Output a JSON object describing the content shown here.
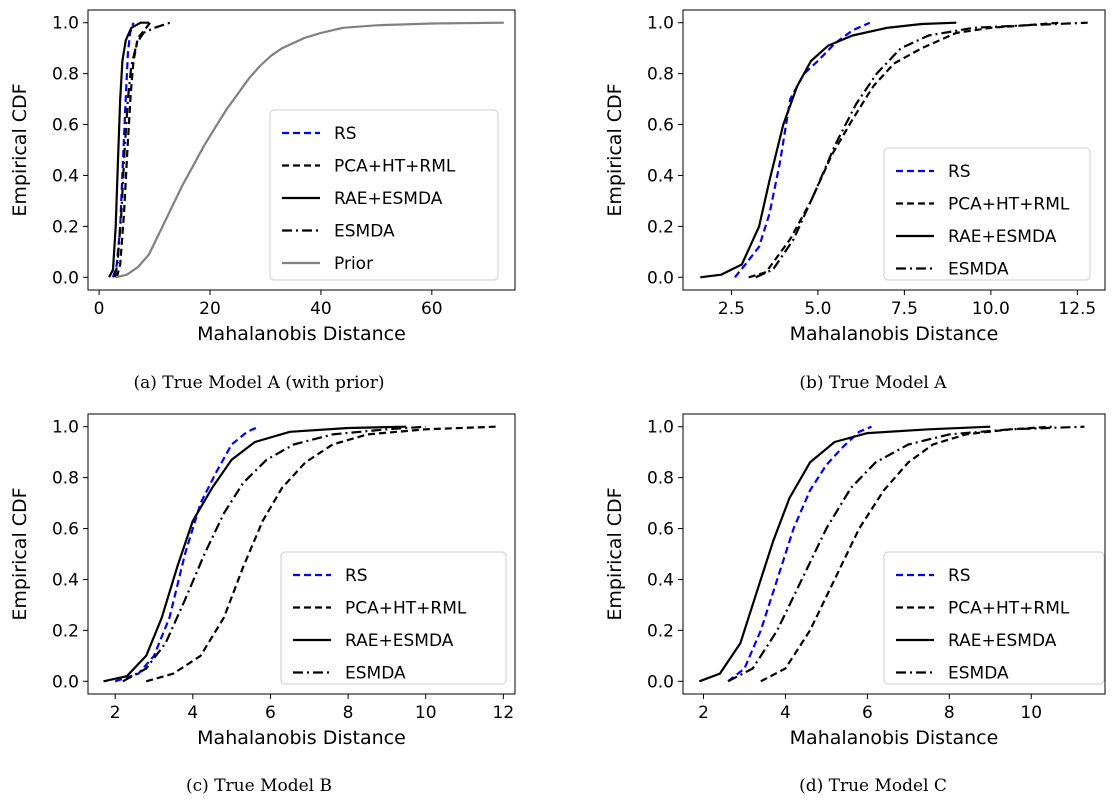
{
  "chart_data": [
    {
      "type": "line",
      "caption": "(a) True Model A (with prior)",
      "xlabel": "Mahalanobis Distance",
      "ylabel": "Empirical CDF",
      "xlim": [
        -2,
        75
      ],
      "ylim": [
        -0.05,
        1.05
      ],
      "xticks": [
        0,
        20,
        40,
        60
      ],
      "xticklabels": [
        "0",
        "20",
        "40",
        "60"
      ],
      "yticks": [
        0.0,
        0.2,
        0.4,
        0.6,
        0.8,
        1.0
      ],
      "yticklabels": [
        "0.0",
        "0.2",
        "0.4",
        "0.6",
        "0.8",
        "1.0"
      ],
      "legend_position": "lower-right",
      "series": [
        {
          "name": "RS",
          "color": "#0000ff",
          "dash": "dashed",
          "points": [
            [
              2.5,
              0
            ],
            [
              3.2,
              0.05
            ],
            [
              3.8,
              0.2
            ],
            [
              4.3,
              0.45
            ],
            [
              4.8,
              0.7
            ],
            [
              5.2,
              0.88
            ],
            [
              5.6,
              0.96
            ],
            [
              6.2,
              1.0
            ]
          ]
        },
        {
          "name": "PCA+HT+RML",
          "color": "#000000",
          "dash": "dashed",
          "points": [
            [
              3.2,
              0
            ],
            [
              3.8,
              0.05
            ],
            [
              4.5,
              0.25
            ],
            [
              5.1,
              0.5
            ],
            [
              5.7,
              0.72
            ],
            [
              6.2,
              0.85
            ],
            [
              7.0,
              0.94
            ],
            [
              8.5,
              0.98
            ],
            [
              9.2,
              1.0
            ]
          ]
        },
        {
          "name": "RAE+ESMDA",
          "color": "#000000",
          "dash": "solid",
          "points": [
            [
              1.8,
              0
            ],
            [
              2.5,
              0.03
            ],
            [
              3.0,
              0.2
            ],
            [
              3.4,
              0.45
            ],
            [
              3.8,
              0.7
            ],
            [
              4.2,
              0.85
            ],
            [
              4.8,
              0.93
            ],
            [
              5.8,
              0.98
            ],
            [
              7.5,
              1.0
            ],
            [
              9.0,
              1.0
            ]
          ]
        },
        {
          "name": "ESMDA",
          "color": "#000000",
          "dash": "dashdot",
          "points": [
            [
              2.8,
              0
            ],
            [
              3.3,
              0.05
            ],
            [
              4.0,
              0.25
            ],
            [
              4.6,
              0.5
            ],
            [
              5.2,
              0.7
            ],
            [
              5.8,
              0.83
            ],
            [
              6.8,
              0.92
            ],
            [
              8.0,
              0.96
            ],
            [
              10.0,
              0.98
            ],
            [
              12.8,
              1.0
            ]
          ]
        },
        {
          "name": "Prior",
          "color": "#808080",
          "dash": "solid",
          "points": [
            [
              3,
              0
            ],
            [
              5,
              0.01
            ],
            [
              7,
              0.04
            ],
            [
              9,
              0.09
            ],
            [
              11,
              0.18
            ],
            [
              13,
              0.27
            ],
            [
              15,
              0.36
            ],
            [
              17,
              0.44
            ],
            [
              19,
              0.52
            ],
            [
              21,
              0.59
            ],
            [
              23,
              0.66
            ],
            [
              25,
              0.72
            ],
            [
              27,
              0.78
            ],
            [
              29,
              0.83
            ],
            [
              31,
              0.87
            ],
            [
              33,
              0.9
            ],
            [
              35,
              0.92
            ],
            [
              37,
              0.94
            ],
            [
              40,
              0.96
            ],
            [
              44,
              0.98
            ],
            [
              50,
              0.99
            ],
            [
              60,
              0.997
            ],
            [
              73,
              1.0
            ]
          ]
        }
      ]
    },
    {
      "type": "line",
      "caption": "(b) True Model A",
      "xlabel": "Mahalanobis Distance",
      "ylabel": "Empirical CDF",
      "xlim": [
        1.1,
        13.3
      ],
      "ylim": [
        -0.05,
        1.05
      ],
      "xticks": [
        2.5,
        5.0,
        7.5,
        10.0,
        12.5
      ],
      "xticklabels": [
        "2.5",
        "5.0",
        "7.5",
        "10.0",
        "12.5"
      ],
      "yticks": [
        0.0,
        0.2,
        0.4,
        0.6,
        0.8,
        1.0
      ],
      "yticklabels": [
        "0.0",
        "0.2",
        "0.4",
        "0.6",
        "0.8",
        "1.0"
      ],
      "legend_position": "lower-right",
      "series": [
        {
          "name": "RS",
          "color": "#0000ff",
          "dash": "dashed",
          "points": [
            [
              2.6,
              0
            ],
            [
              2.9,
              0.05
            ],
            [
              3.3,
              0.12
            ],
            [
              3.6,
              0.25
            ],
            [
              3.9,
              0.45
            ],
            [
              4.2,
              0.7
            ],
            [
              4.6,
              0.8
            ],
            [
              5.0,
              0.85
            ],
            [
              5.5,
              0.92
            ],
            [
              6.0,
              0.97
            ],
            [
              6.5,
              1.0
            ]
          ]
        },
        {
          "name": "PCA+HT+RML",
          "color": "#000000",
          "dash": "dashed",
          "points": [
            [
              3.0,
              0
            ],
            [
              3.5,
              0.02
            ],
            [
              4.2,
              0.15
            ],
            [
              4.8,
              0.3
            ],
            [
              5.4,
              0.48
            ],
            [
              6.0,
              0.62
            ],
            [
              6.6,
              0.75
            ],
            [
              7.2,
              0.84
            ],
            [
              8.0,
              0.9
            ],
            [
              9.0,
              0.96
            ],
            [
              10.0,
              0.98
            ],
            [
              11.0,
              0.99
            ],
            [
              12.0,
              1.0
            ]
          ]
        },
        {
          "name": "RAE+ESMDA",
          "color": "#000000",
          "dash": "solid",
          "points": [
            [
              1.6,
              0
            ],
            [
              2.2,
              0.01
            ],
            [
              2.8,
              0.05
            ],
            [
              3.3,
              0.2
            ],
            [
              3.6,
              0.38
            ],
            [
              4.0,
              0.6
            ],
            [
              4.4,
              0.75
            ],
            [
              4.8,
              0.85
            ],
            [
              5.3,
              0.91
            ],
            [
              6.0,
              0.95
            ],
            [
              7.0,
              0.98
            ],
            [
              8.0,
              0.995
            ],
            [
              9.0,
              1.0
            ]
          ]
        },
        {
          "name": "ESMDA",
          "color": "#000000",
          "dash": "dashdot",
          "points": [
            [
              3.2,
              0
            ],
            [
              3.7,
              0.03
            ],
            [
              4.3,
              0.15
            ],
            [
              4.9,
              0.33
            ],
            [
              5.5,
              0.52
            ],
            [
              6.1,
              0.68
            ],
            [
              6.7,
              0.8
            ],
            [
              7.4,
              0.9
            ],
            [
              8.2,
              0.95
            ],
            [
              9.5,
              0.98
            ],
            [
              11.0,
              0.99
            ],
            [
              12.8,
              1.0
            ]
          ]
        }
      ]
    },
    {
      "type": "line",
      "caption": "(c) True Model B",
      "xlabel": "Mahalanobis Distance",
      "ylabel": "Empirical CDF",
      "xlim": [
        1.3,
        12.3
      ],
      "ylim": [
        -0.05,
        1.05
      ],
      "xticks": [
        2,
        4,
        6,
        8,
        10,
        12
      ],
      "xticklabels": [
        "2",
        "4",
        "6",
        "8",
        "10",
        "12"
      ],
      "yticks": [
        0.0,
        0.2,
        0.4,
        0.6,
        0.8,
        1.0
      ],
      "yticklabels": [
        "0.0",
        "0.2",
        "0.4",
        "0.6",
        "0.8",
        "1.0"
      ],
      "legend_position": "lower-right",
      "series": [
        {
          "name": "RS",
          "color": "#0000ff",
          "dash": "dashed",
          "points": [
            [
              2.0,
              0
            ],
            [
              2.6,
              0.03
            ],
            [
              3.0,
              0.1
            ],
            [
              3.4,
              0.25
            ],
            [
              3.8,
              0.5
            ],
            [
              4.2,
              0.7
            ],
            [
              4.6,
              0.82
            ],
            [
              5.0,
              0.93
            ],
            [
              5.4,
              0.98
            ],
            [
              5.7,
              1.0
            ]
          ]
        },
        {
          "name": "PCA+HT+RML",
          "color": "#000000",
          "dash": "dashed",
          "points": [
            [
              2.8,
              0
            ],
            [
              3.5,
              0.03
            ],
            [
              4.2,
              0.1
            ],
            [
              4.8,
              0.25
            ],
            [
              5.3,
              0.45
            ],
            [
              5.8,
              0.63
            ],
            [
              6.3,
              0.76
            ],
            [
              6.9,
              0.86
            ],
            [
              7.6,
              0.93
            ],
            [
              8.5,
              0.97
            ],
            [
              10.0,
              0.99
            ],
            [
              11.8,
              1.0
            ]
          ]
        },
        {
          "name": "RAE+ESMDA",
          "color": "#000000",
          "dash": "solid",
          "points": [
            [
              1.7,
              0
            ],
            [
              2.3,
              0.02
            ],
            [
              2.8,
              0.1
            ],
            [
              3.2,
              0.25
            ],
            [
              3.6,
              0.45
            ],
            [
              4.0,
              0.63
            ],
            [
              4.5,
              0.76
            ],
            [
              5.0,
              0.87
            ],
            [
              5.6,
              0.94
            ],
            [
              6.5,
              0.98
            ],
            [
              8.0,
              0.995
            ],
            [
              9.5,
              1.0
            ]
          ]
        },
        {
          "name": "ESMDA",
          "color": "#000000",
          "dash": "dashdot",
          "points": [
            [
              2.2,
              0
            ],
            [
              2.8,
              0.05
            ],
            [
              3.3,
              0.15
            ],
            [
              3.8,
              0.32
            ],
            [
              4.3,
              0.5
            ],
            [
              4.8,
              0.66
            ],
            [
              5.3,
              0.78
            ],
            [
              5.9,
              0.87
            ],
            [
              6.6,
              0.93
            ],
            [
              7.6,
              0.97
            ],
            [
              9.0,
              0.99
            ],
            [
              10.0,
              1.0
            ]
          ]
        }
      ]
    },
    {
      "type": "line",
      "caption": "(d) True Model C",
      "xlabel": "Mahalanobis Distance",
      "ylabel": "Empirical CDF",
      "xlim": [
        1.5,
        11.8
      ],
      "ylim": [
        -0.05,
        1.05
      ],
      "xticks": [
        2,
        4,
        6,
        8,
        10
      ],
      "xticklabels": [
        "2",
        "4",
        "6",
        "8",
        "10"
      ],
      "yticks": [
        0.0,
        0.2,
        0.4,
        0.6,
        0.8,
        1.0
      ],
      "yticklabels": [
        "0.0",
        "0.2",
        "0.4",
        "0.6",
        "0.8",
        "1.0"
      ],
      "legend_position": "lower-right",
      "series": [
        {
          "name": "RS",
          "color": "#0000ff",
          "dash": "dashed",
          "points": [
            [
              2.6,
              0
            ],
            [
              3.0,
              0.05
            ],
            [
              3.4,
              0.2
            ],
            [
              3.8,
              0.4
            ],
            [
              4.2,
              0.6
            ],
            [
              4.6,
              0.75
            ],
            [
              5.0,
              0.85
            ],
            [
              5.4,
              0.92
            ],
            [
              5.8,
              0.98
            ],
            [
              6.1,
              1.0
            ]
          ]
        },
        {
          "name": "PCA+HT+RML",
          "color": "#000000",
          "dash": "dashed",
          "points": [
            [
              3.4,
              0
            ],
            [
              4.0,
              0.05
            ],
            [
              4.6,
              0.2
            ],
            [
              5.2,
              0.4
            ],
            [
              5.8,
              0.6
            ],
            [
              6.4,
              0.75
            ],
            [
              7.0,
              0.86
            ],
            [
              7.6,
              0.93
            ],
            [
              8.4,
              0.97
            ],
            [
              9.5,
              0.99
            ],
            [
              10.5,
              1.0
            ]
          ]
        },
        {
          "name": "RAE+ESMDA",
          "color": "#000000",
          "dash": "solid",
          "points": [
            [
              1.9,
              0
            ],
            [
              2.4,
              0.03
            ],
            [
              2.9,
              0.15
            ],
            [
              3.3,
              0.35
            ],
            [
              3.7,
              0.55
            ],
            [
              4.1,
              0.72
            ],
            [
              4.6,
              0.86
            ],
            [
              5.2,
              0.94
            ],
            [
              6.0,
              0.975
            ],
            [
              7.5,
              0.99
            ],
            [
              9.0,
              1.0
            ]
          ]
        },
        {
          "name": "ESMDA",
          "color": "#000000",
          "dash": "dashdot",
          "points": [
            [
              2.6,
              0
            ],
            [
              3.2,
              0.05
            ],
            [
              3.8,
              0.2
            ],
            [
              4.4,
              0.4
            ],
            [
              5.0,
              0.6
            ],
            [
              5.6,
              0.76
            ],
            [
              6.2,
              0.86
            ],
            [
              7.0,
              0.93
            ],
            [
              8.0,
              0.97
            ],
            [
              9.5,
              0.99
            ],
            [
              11.3,
              1.0
            ]
          ]
        }
      ]
    }
  ]
}
